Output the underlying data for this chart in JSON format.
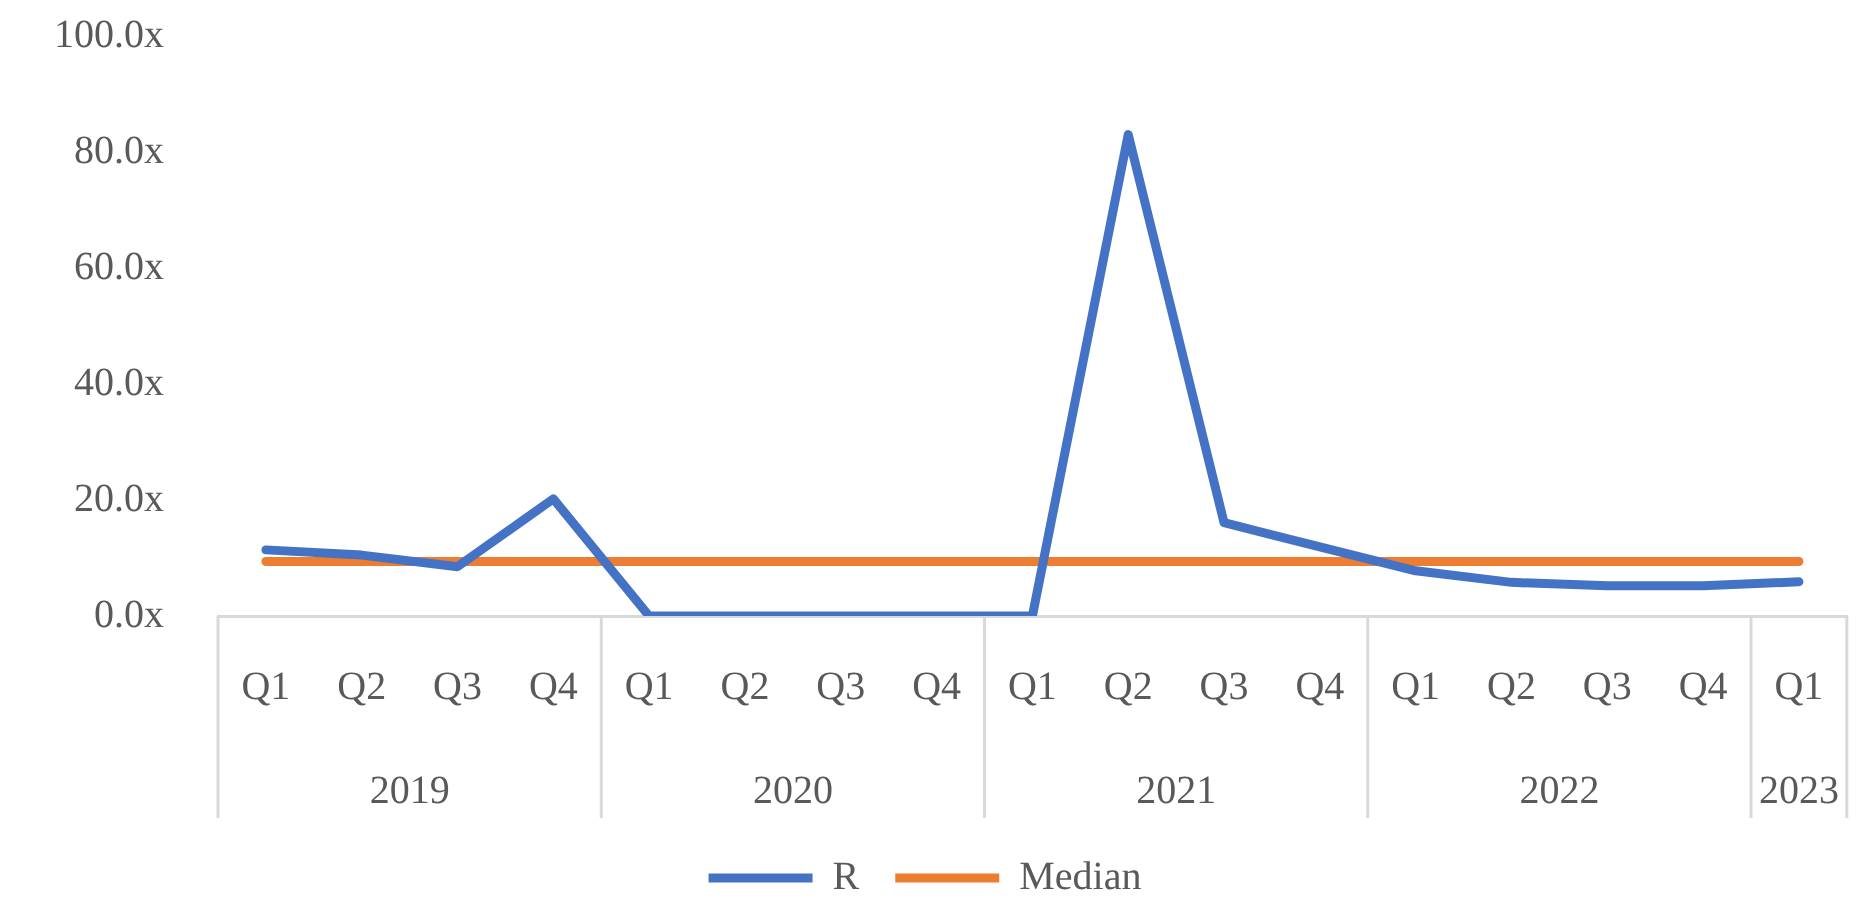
{
  "chart_data": {
    "type": "line",
    "categories": [
      "Q1",
      "Q2",
      "Q3",
      "Q4",
      "Q1",
      "Q2",
      "Q3",
      "Q4",
      "Q1",
      "Q2",
      "Q3",
      "Q4",
      "Q1",
      "Q2",
      "Q3",
      "Q4",
      "Q1"
    ],
    "annotations": [
      "2019",
      "2020",
      "2021",
      "2022",
      "2023"
    ],
    "series": [
      {
        "name": "R",
        "color": "#4472c4",
        "values": [
          11.4,
          10.5,
          8.5,
          20.2,
          0,
          0,
          0,
          0,
          0,
          83.0,
          16.1,
          11.9,
          7.8,
          5.8,
          5.2,
          5.2,
          5.9
        ]
      },
      {
        "name": "Median",
        "color": "#ed7d31",
        "values": [
          9.4,
          9.4,
          9.4,
          9.4,
          9.4,
          9.4,
          9.4,
          9.4,
          9.4,
          9.4,
          9.4,
          9.4,
          9.4,
          9.4,
          9.4,
          9.4,
          9.4
        ]
      }
    ],
    "ylim": [
      0,
      100
    ],
    "yticks": [
      {
        "value": 0,
        "label": "0.0x"
      },
      {
        "value": 20,
        "label": "20.0x"
      },
      {
        "value": 40,
        "label": "40.0x"
      },
      {
        "value": 60,
        "label": "60.0x"
      },
      {
        "value": 80,
        "label": "80.0x"
      },
      {
        "value": 100,
        "label": "100.0x"
      }
    ],
    "grid": false,
    "legend": "bottom",
    "marker": "none"
  }
}
